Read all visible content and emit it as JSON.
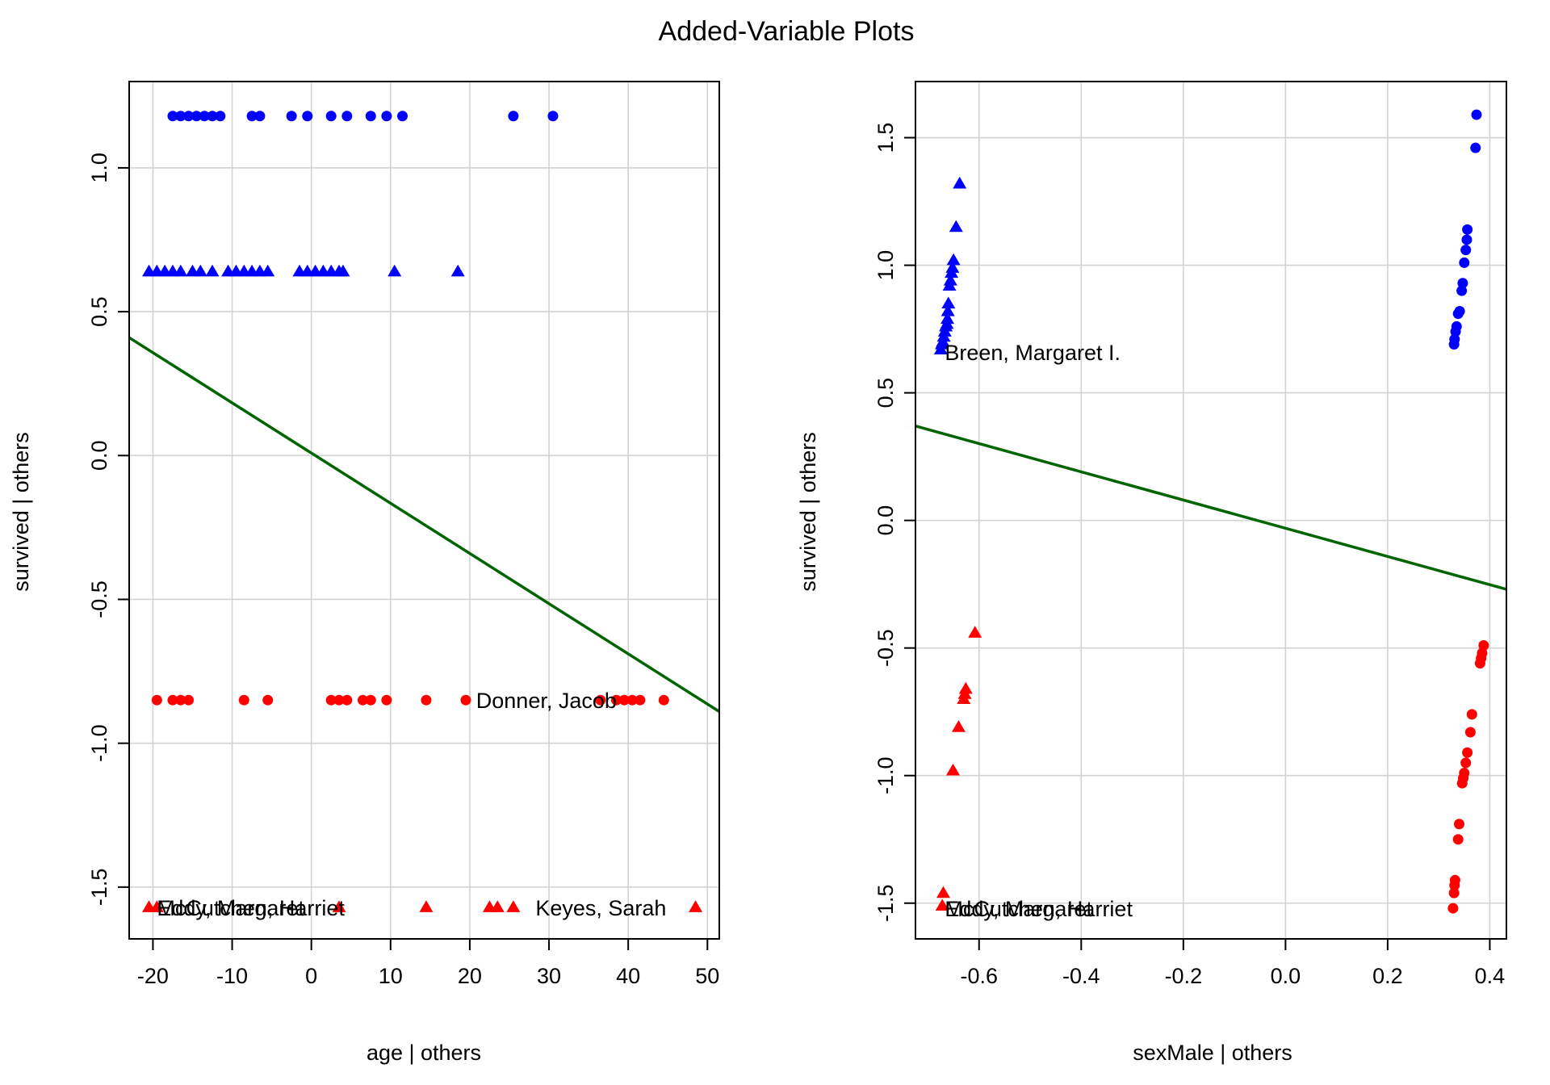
{
  "page_title": "Added-Variable Plots",
  "colors": {
    "survived": "#0000ff",
    "died": "#ff0000",
    "fit": "#006400",
    "grid": "#d3d3d3"
  },
  "chart_data": [
    {
      "type": "scatter",
      "title": "Added-Variable Plots",
      "xlabel": "age | others",
      "ylabel": "survived  | others",
      "xlim": [
        -23,
        51.5
      ],
      "ylim": [
        -1.68,
        1.3
      ],
      "xticks": [
        -20,
        -10,
        0,
        10,
        20,
        30,
        40,
        50
      ],
      "yticks": [
        -1.5,
        -1.0,
        -0.5,
        0.0,
        0.5,
        1.0
      ],
      "grid": true,
      "series": [
        {
          "marker": "circle",
          "color": "#0000ff",
          "x": [
            -17.5,
            -16.5,
            -15.5,
            -14.5,
            -13.5,
            -12.5,
            -11.5,
            -7.5,
            -6.5,
            -2.5,
            -0.5,
            2.5,
            4.5,
            7.5,
            9.5,
            11.5,
            25.5,
            30.5
          ],
          "y": [
            1.18,
            1.18,
            1.18,
            1.18,
            1.18,
            1.18,
            1.18,
            1.18,
            1.18,
            1.18,
            1.18,
            1.18,
            1.18,
            1.18,
            1.18,
            1.18,
            1.18,
            1.18
          ]
        },
        {
          "marker": "triangle",
          "color": "#0000ff",
          "x": [
            -20.5,
            -19.5,
            -18.5,
            -17.5,
            -16.5,
            -15,
            -14,
            -12.5,
            -10.5,
            -9.5,
            -8.5,
            -7.5,
            -6.5,
            -5.5,
            -1.5,
            -0.5,
            0.5,
            1.5,
            2.5,
            3.5,
            4,
            10.5,
            18.5
          ],
          "y": [
            0.64,
            0.64,
            0.64,
            0.64,
            0.64,
            0.64,
            0.64,
            0.64,
            0.64,
            0.64,
            0.64,
            0.64,
            0.64,
            0.64,
            0.64,
            0.64,
            0.64,
            0.64,
            0.64,
            0.64,
            0.64,
            0.64,
            0.64
          ]
        },
        {
          "marker": "circle",
          "color": "#ff0000",
          "x": [
            -19.5,
            -17.5,
            -16.5,
            -15.5,
            -8.5,
            -5.5,
            2.5,
            3.5,
            4.5,
            6.5,
            7.5,
            9.5,
            14.5,
            19.5,
            36.5,
            38.5,
            39.5,
            40.5,
            41.5,
            44.5
          ],
          "y": [
            -0.85,
            -0.85,
            -0.85,
            -0.85,
            -0.85,
            -0.85,
            -0.85,
            -0.85,
            -0.85,
            -0.85,
            -0.85,
            -0.85,
            -0.85,
            -0.85,
            -0.85,
            -0.85,
            -0.85,
            -0.85,
            -0.85,
            -0.85
          ]
        },
        {
          "marker": "triangle",
          "color": "#ff0000",
          "x": [
            -20.5,
            -19.5,
            3.5,
            14.5,
            22.5,
            23.5,
            25.5,
            48.5
          ],
          "y": [
            -1.57,
            -1.57,
            -1.57,
            -1.57,
            -1.57,
            -1.57,
            -1.57,
            -1.57
          ]
        }
      ],
      "fit_line": {
        "x": [
          -23,
          51.5
        ],
        "y": [
          0.41,
          -0.89
        ]
      },
      "point_labels": [
        {
          "text": "Donner, Jacob",
          "x": 20.8,
          "y": -0.85
        },
        {
          "text": "Eddy, Margaret",
          "x": -19.5,
          "y": -1.57
        },
        {
          "text": "McCutchen, Harriet",
          "x": -19.5,
          "y": -1.57
        },
        {
          "text": "Keyes, Sarah",
          "x": 28.3,
          "y": -1.57
        }
      ]
    },
    {
      "type": "scatter",
      "xlabel": "sexMale | others",
      "ylabel": "survived  | others",
      "xlim": [
        -0.7245,
        0.4325
      ],
      "ylim": [
        -1.64,
        1.72
      ],
      "xticks": [
        -0.6,
        -0.4,
        -0.2,
        0.0,
        0.2,
        0.4
      ],
      "yticks": [
        -1.5,
        -1.0,
        -0.5,
        0.0,
        0.5,
        1.0,
        1.5
      ],
      "grid": true,
      "series": [
        {
          "marker": "circle",
          "color": "#0000ff",
          "x": [
            0.374,
            0.372,
            0.356,
            0.355,
            0.353,
            0.35,
            0.347,
            0.345,
            0.341,
            0.338,
            0.335,
            0.333,
            0.331,
            0.33
          ],
          "y": [
            1.59,
            1.46,
            1.14,
            1.1,
            1.06,
            1.01,
            0.93,
            0.9,
            0.82,
            0.81,
            0.76,
            0.74,
            0.71,
            0.69
          ]
        },
        {
          "marker": "triangle",
          "color": "#0000ff",
          "x": [
            -0.638,
            -0.645,
            -0.65,
            -0.652,
            -0.654,
            -0.656,
            -0.658,
            -0.66,
            -0.661,
            -0.662,
            -0.663,
            -0.665,
            -0.667,
            -0.669,
            -0.671,
            -0.673,
            -0.675
          ],
          "y": [
            1.32,
            1.15,
            1.02,
            0.99,
            0.97,
            0.94,
            0.92,
            0.85,
            0.82,
            0.79,
            0.77,
            0.76,
            0.74,
            0.72,
            0.7,
            0.69,
            0.67
          ]
        },
        {
          "marker": "circle",
          "color": "#ff0000",
          "x": [
            0.388,
            0.385,
            0.383,
            0.381,
            0.365,
            0.362,
            0.356,
            0.353,
            0.35,
            0.348,
            0.346,
            0.34,
            0.338,
            0.332,
            0.331,
            0.33,
            0.328
          ],
          "y": [
            -0.49,
            -0.52,
            -0.54,
            -0.56,
            -0.76,
            -0.83,
            -0.91,
            -0.95,
            -0.99,
            -1.01,
            -1.03,
            -1.19,
            -1.25,
            -1.41,
            -1.43,
            -1.46,
            -1.52
          ]
        },
        {
          "marker": "triangle",
          "color": "#ff0000",
          "x": [
            -0.608,
            -0.626,
            -0.628,
            -0.63,
            -0.64,
            -0.651,
            -0.67,
            -0.672
          ],
          "y": [
            -0.44,
            -0.66,
            -0.68,
            -0.7,
            -0.81,
            -0.98,
            -1.46,
            -1.51
          ]
        }
      ],
      "fit_line": {
        "x": [
          -0.7245,
          0.4325
        ],
        "y": [
          0.37,
          -0.27
        ]
      },
      "point_labels": [
        {
          "text": "Breen, Margaret I.",
          "x": -0.667,
          "y": 0.66
        },
        {
          "text": "Eddy, Margaret",
          "x": -0.667,
          "y": -1.52
        },
        {
          "text": "McCutchen, Harriet",
          "x": -0.667,
          "y": -1.52
        }
      ]
    }
  ]
}
